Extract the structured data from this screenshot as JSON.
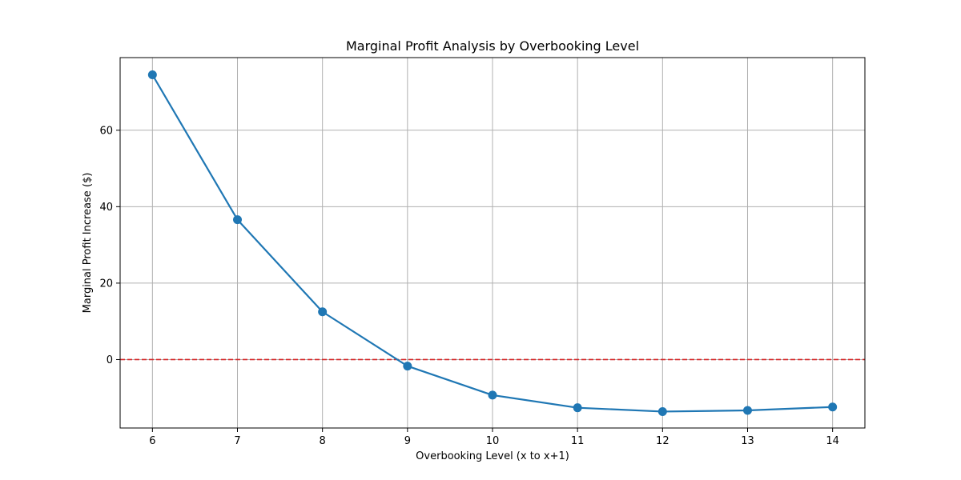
{
  "chart_data": {
    "type": "line",
    "title": "Marginal Profit Analysis by Overbooking Level",
    "xlabel": "Overbooking Level (x to x+1)",
    "ylabel": "Marginal Profit Increase ($)",
    "x": [
      6,
      7,
      8,
      9,
      10,
      11,
      12,
      13,
      14
    ],
    "series": [
      {
        "name": "",
        "values": [
          74.5,
          36.6,
          12.5,
          -1.7,
          -9.3,
          -12.6,
          -13.6,
          -13.3,
          -12.4
        ],
        "color": "#1f77b4",
        "marker": "circle"
      }
    ],
    "reference_line": {
      "y": 0,
      "color": "#d62728",
      "style": "dashed"
    },
    "xlim": [
      5.62,
      14.38
    ],
    "ylim": [
      -17.9,
      79.0
    ],
    "xticks": [
      6,
      7,
      8,
      9,
      10,
      11,
      12,
      13,
      14
    ],
    "yticks": [
      0,
      20,
      40,
      60
    ],
    "grid": true,
    "legend": "none"
  }
}
